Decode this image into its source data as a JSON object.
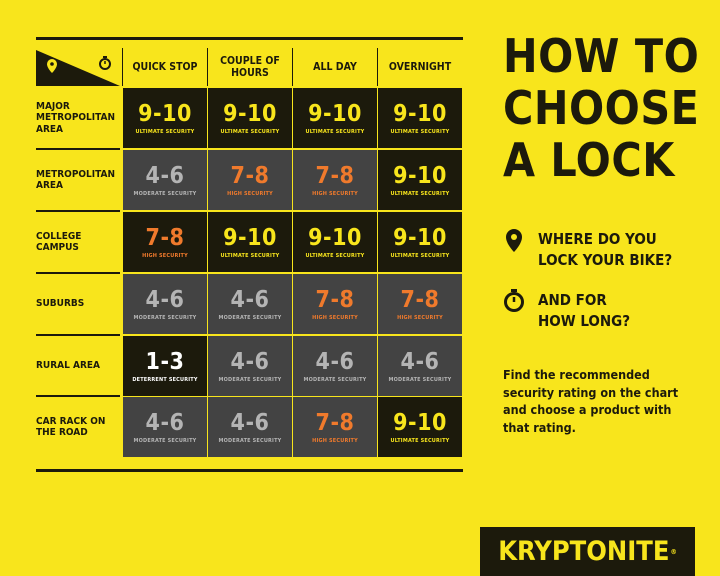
{
  "columns": [
    "QUICK STOP",
    "COUPLE OF HOURS",
    "ALL DAY",
    "OVERNIGHT"
  ],
  "rows": [
    {
      "label": "MAJOR METROPOLITAN AREA",
      "cells": [
        {
          "rating": "9-10",
          "level": "ULTIMATE SECURITY"
        },
        {
          "rating": "9-10",
          "level": "ULTIMATE SECURITY"
        },
        {
          "rating": "9-10",
          "level": "ULTIMATE SECURITY"
        },
        {
          "rating": "9-10",
          "level": "ULTIMATE SECURITY"
        }
      ]
    },
    {
      "label": "METROPOLITAN AREA",
      "cells": [
        {
          "rating": "4-6",
          "level": "MODERATE SECURITY"
        },
        {
          "rating": "7-8",
          "level": "HIGH SECURITY"
        },
        {
          "rating": "7-8",
          "level": "HIGH SECURITY"
        },
        {
          "rating": "9-10",
          "level": "ULTIMATE SECURITY"
        }
      ]
    },
    {
      "label": "COLLEGE CAMPUS",
      "cells": [
        {
          "rating": "7-8",
          "level": "HIGH SECURITY"
        },
        {
          "rating": "9-10",
          "level": "ULTIMATE SECURITY"
        },
        {
          "rating": "9-10",
          "level": "ULTIMATE SECURITY"
        },
        {
          "rating": "9-10",
          "level": "ULTIMATE SECURITY"
        }
      ]
    },
    {
      "label": "SUBURBS",
      "cells": [
        {
          "rating": "4-6",
          "level": "MODERATE SECURITY"
        },
        {
          "rating": "4-6",
          "level": "MODERATE SECURITY"
        },
        {
          "rating": "7-8",
          "level": "HIGH SECURITY"
        },
        {
          "rating": "7-8",
          "level": "HIGH SECURITY"
        }
      ]
    },
    {
      "label": "RURAL AREA",
      "cells": [
        {
          "rating": "1-3",
          "level": "DETERRENT SECURITY"
        },
        {
          "rating": "4-6",
          "level": "MODERATE SECURITY"
        },
        {
          "rating": "4-6",
          "level": "MODERATE SECURITY"
        },
        {
          "rating": "4-6",
          "level": "MODERATE SECURITY"
        }
      ]
    },
    {
      "label": "CAR RACK ON THE ROAD",
      "cells": [
        {
          "rating": "4-6",
          "level": "MODERATE SECURITY"
        },
        {
          "rating": "4-6",
          "level": "MODERATE SECURITY"
        },
        {
          "rating": "7-8",
          "level": "HIGH SECURITY"
        },
        {
          "rating": "9-10",
          "level": "ULTIMATE SECURITY"
        }
      ]
    }
  ],
  "title": [
    "HOW TO",
    "CHOOSE",
    "A LOCK"
  ],
  "question_where": [
    "WHERE DO YOU",
    "LOCK YOUR BIKE?"
  ],
  "question_how_long": [
    "AND FOR",
    "HOW LONG?"
  ],
  "description": "Find the recommended security rating on the chart and choose a product with that rating.",
  "logo": "KRYPTONITE",
  "colors": {
    "background": "#f8e51c",
    "dark": "#1c1a0c",
    "gray": "#434343",
    "ultimate": "#f8e51c",
    "high": "#f07a2c",
    "moderate": "#b4b4b4",
    "deterrent": "#ffffff"
  },
  "icons": [
    "location-pin-icon",
    "stopwatch-icon"
  ]
}
